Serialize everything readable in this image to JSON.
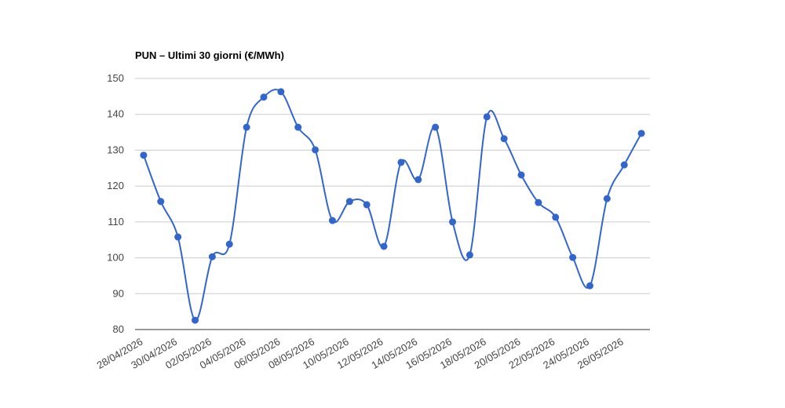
{
  "chart_data": {
    "type": "line",
    "title": "PUN – Ultimi 30 giorni (€/MWh)",
    "categories": [
      "28/04/2026",
      null,
      "30/04/2026",
      null,
      "02/05/2026",
      null,
      "04/05/2026",
      null,
      "06/05/2026",
      null,
      "08/05/2026",
      null,
      "10/05/2026",
      null,
      "12/05/2026",
      null,
      "14/05/2026",
      null,
      "16/05/2026",
      null,
      "18/05/2026",
      null,
      "20/05/2026",
      null,
      "22/05/2026",
      null,
      "24/05/2026",
      null,
      "26/05/2026",
      null
    ],
    "series": [
      {
        "name": "PUN",
        "color": "#3366cc",
        "values": [
          128.6,
          115.7,
          105.8,
          82.6,
          100.3,
          103.8,
          136.4,
          144.8,
          146.3,
          136.4,
          130.1,
          110.4,
          115.7,
          114.8,
          103.2,
          126.6,
          121.8,
          136.4,
          110.0,
          100.8,
          139.3,
          133.2,
          123.1,
          115.4,
          111.3,
          100.1,
          92.2,
          116.5,
          125.9,
          134.7
        ]
      }
    ],
    "ylim": [
      80,
      150
    ],
    "yticks": [
      80,
      90,
      100,
      110,
      120,
      130,
      140,
      150
    ],
    "grid": true,
    "smooth": true
  }
}
